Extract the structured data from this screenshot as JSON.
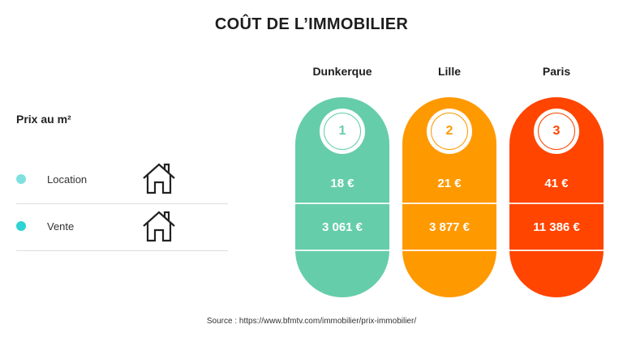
{
  "title": "COÛT DE L’IMMOBILIER",
  "legend": {
    "subtitle": "Prix au m²",
    "rows": [
      {
        "label": "Location",
        "dot_color": "#7fe0e0",
        "icon": "house-icon"
      },
      {
        "label": "Vente",
        "dot_color": "#2ed3d3",
        "icon": "house-icon"
      }
    ]
  },
  "cities": [
    {
      "name": "Dunkerque",
      "rank": "1",
      "color": "#66cdaa",
      "location": "18 €",
      "vente": "3 061 €"
    },
    {
      "name": "Lille",
      "rank": "2",
      "color": "#ff9900",
      "location": "21 €",
      "vente": "3 877 €"
    },
    {
      "name": "Paris",
      "rank": "3",
      "color": "#ff4500",
      "location": "41 €",
      "vente": "11 386 €"
    }
  ],
  "source": "Source : https://www.bfmtv.com/immobilier/prix-immobilier/"
}
